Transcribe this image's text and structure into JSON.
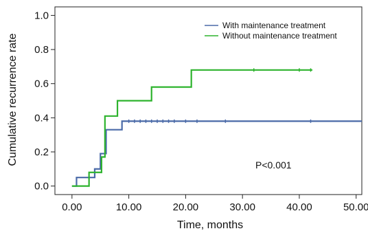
{
  "chart_data": {
    "type": "line",
    "subtype": "step",
    "xlabel": "Time, months",
    "ylabel": "Cumulative recurrence rate",
    "xlim": [
      -3,
      51
    ],
    "ylim": [
      -0.05,
      1.05
    ],
    "x_ticks": [
      0,
      10,
      20,
      30,
      40,
      50
    ],
    "x_tick_labels": [
      "0.00",
      "10.00",
      "20.00",
      "30.00",
      "40.00",
      "50.00"
    ],
    "y_ticks": [
      0.0,
      0.2,
      0.4,
      0.6,
      0.8,
      1.0
    ],
    "y_tick_labels": [
      "0.0",
      "0.2",
      "0.4",
      "0.6",
      "0.8",
      "1.0"
    ],
    "grid": false,
    "legend_position": "top-right",
    "annotation": "P<0.001",
    "series": [
      {
        "name": "With maintenance treatment",
        "color": "#4a6aa8",
        "steps": [
          [
            0,
            0.0
          ],
          [
            0.8,
            0.05
          ],
          [
            4.0,
            0.1
          ],
          [
            5.0,
            0.19
          ],
          [
            6.0,
            0.33
          ],
          [
            8.8,
            0.38
          ],
          [
            51.0,
            0.38
          ]
        ],
        "censor_x": [
          10,
          11,
          12,
          13,
          14,
          15,
          16,
          17,
          18,
          20,
          22,
          27,
          42
        ]
      },
      {
        "name": "Without maintenance treatment",
        "color": "#2db32d",
        "steps": [
          [
            0,
            0.0
          ],
          [
            3.0,
            0.08
          ],
          [
            4.5,
            0.08
          ],
          [
            5.2,
            0.17
          ],
          [
            5.8,
            0.41
          ],
          [
            8.0,
            0.5
          ],
          [
            14.0,
            0.58
          ],
          [
            21.0,
            0.68
          ],
          [
            42.3,
            0.68
          ]
        ],
        "censor_x": [
          32,
          40,
          42
        ]
      }
    ]
  }
}
